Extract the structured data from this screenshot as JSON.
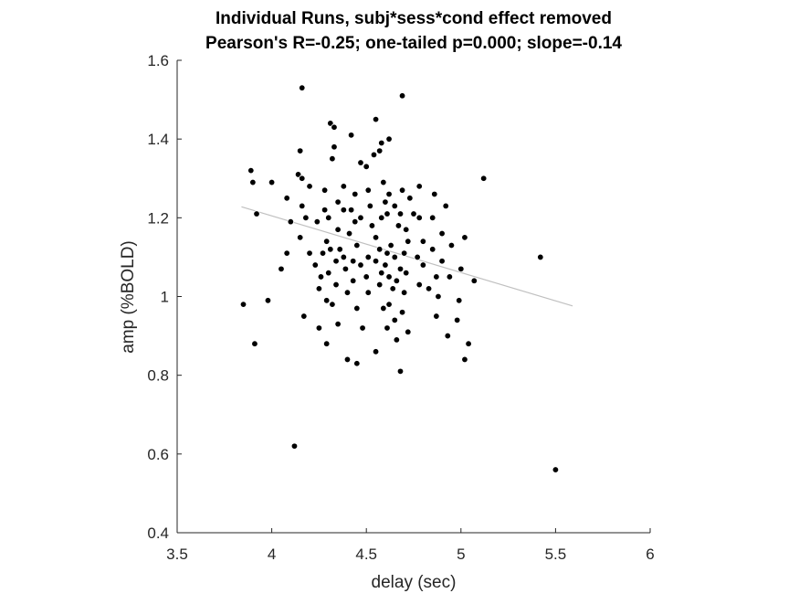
{
  "chart_data": {
    "type": "scatter",
    "title": "Individual Runs, subj*sess*cond effect removed",
    "subtitle": "Pearson's R=-0.25; one-tailed p=0.000; slope=-0.14",
    "xlabel": "delay (sec)",
    "ylabel": "amp (%BOLD)",
    "xlim": [
      3.5,
      6
    ],
    "ylim": [
      0.4,
      1.6
    ],
    "xticks": [
      "3.5",
      "4",
      "4.5",
      "5",
      "5.5",
      "6"
    ],
    "yticks": [
      "0.4",
      "0.6",
      "0.8",
      "1",
      "1.2",
      "1.4",
      "1.6"
    ],
    "grid": false,
    "points": [
      [
        4.16,
        1.53
      ],
      [
        4.69,
        1.51
      ],
      [
        4.55,
        1.45
      ],
      [
        4.31,
        1.44
      ],
      [
        4.33,
        1.43
      ],
      [
        4.42,
        1.41
      ],
      [
        4.58,
        1.39
      ],
      [
        4.62,
        1.4
      ],
      [
        4.33,
        1.38
      ],
      [
        4.15,
        1.37
      ],
      [
        4.57,
        1.37
      ],
      [
        4.54,
        1.36
      ],
      [
        4.32,
        1.35
      ],
      [
        4.47,
        1.34
      ],
      [
        4.5,
        1.33
      ],
      [
        3.89,
        1.32
      ],
      [
        4.14,
        1.31
      ],
      [
        4.16,
        1.3
      ],
      [
        5.12,
        1.3
      ],
      [
        3.9,
        1.29
      ],
      [
        4.0,
        1.29
      ],
      [
        4.59,
        1.29
      ],
      [
        4.38,
        1.28
      ],
      [
        4.2,
        1.28
      ],
      [
        4.78,
        1.28
      ],
      [
        4.28,
        1.27
      ],
      [
        4.69,
        1.27
      ],
      [
        4.51,
        1.27
      ],
      [
        4.62,
        1.26
      ],
      [
        4.86,
        1.26
      ],
      [
        4.44,
        1.26
      ],
      [
        4.08,
        1.25
      ],
      [
        4.73,
        1.25
      ],
      [
        4.35,
        1.24
      ],
      [
        4.6,
        1.24
      ],
      [
        4.65,
        1.23
      ],
      [
        4.16,
        1.23
      ],
      [
        4.92,
        1.23
      ],
      [
        4.52,
        1.23
      ],
      [
        4.42,
        1.22
      ],
      [
        4.28,
        1.22
      ],
      [
        4.38,
        1.22
      ],
      [
        4.75,
        1.21
      ],
      [
        3.92,
        1.21
      ],
      [
        4.61,
        1.21
      ],
      [
        4.68,
        1.21
      ],
      [
        4.18,
        1.2
      ],
      [
        4.3,
        1.2
      ],
      [
        4.47,
        1.2
      ],
      [
        4.58,
        1.2
      ],
      [
        4.78,
        1.2
      ],
      [
        4.85,
        1.2
      ],
      [
        4.44,
        1.19
      ],
      [
        4.24,
        1.19
      ],
      [
        4.1,
        1.19
      ],
      [
        4.53,
        1.18
      ],
      [
        4.67,
        1.18
      ],
      [
        4.71,
        1.17
      ],
      [
        4.35,
        1.17
      ],
      [
        4.9,
        1.16
      ],
      [
        4.41,
        1.16
      ],
      [
        4.15,
        1.15
      ],
      [
        4.55,
        1.15
      ],
      [
        4.72,
        1.14
      ],
      [
        5.02,
        1.15
      ],
      [
        4.8,
        1.14
      ],
      [
        4.29,
        1.14
      ],
      [
        4.63,
        1.13
      ],
      [
        4.45,
        1.13
      ],
      [
        4.95,
        1.13
      ],
      [
        4.31,
        1.12
      ],
      [
        4.57,
        1.12
      ],
      [
        4.85,
        1.12
      ],
      [
        4.36,
        1.12
      ],
      [
        4.7,
        1.11
      ],
      [
        4.61,
        1.11
      ],
      [
        4.2,
        1.11
      ],
      [
        4.08,
        1.11
      ],
      [
        4.27,
        1.11
      ],
      [
        4.51,
        1.1
      ],
      [
        4.38,
        1.1
      ],
      [
        4.77,
        1.1
      ],
      [
        5.42,
        1.1
      ],
      [
        4.65,
        1.1
      ],
      [
        4.43,
        1.09
      ],
      [
        4.9,
        1.09
      ],
      [
        4.34,
        1.09
      ],
      [
        4.55,
        1.09
      ],
      [
        4.23,
        1.08
      ],
      [
        4.6,
        1.08
      ],
      [
        4.8,
        1.08
      ],
      [
        4.47,
        1.08
      ],
      [
        4.68,
        1.07
      ],
      [
        4.39,
        1.07
      ],
      [
        4.05,
        1.07
      ],
      [
        5.0,
        1.07
      ],
      [
        4.58,
        1.06
      ],
      [
        4.3,
        1.06
      ],
      [
        4.71,
        1.06
      ],
      [
        4.87,
        1.05
      ],
      [
        4.62,
        1.05
      ],
      [
        4.5,
        1.05
      ],
      [
        4.26,
        1.05
      ],
      [
        4.66,
        1.04
      ],
      [
        4.43,
        1.04
      ],
      [
        4.94,
        1.05
      ],
      [
        5.07,
        1.04
      ],
      [
        4.57,
        1.03
      ],
      [
        4.34,
        1.03
      ],
      [
        4.78,
        1.03
      ],
      [
        4.64,
        1.02
      ],
      [
        4.25,
        1.02
      ],
      [
        4.83,
        1.02
      ],
      [
        4.51,
        1.01
      ],
      [
        4.7,
        1.01
      ],
      [
        4.4,
        1.01
      ],
      [
        4.88,
        1.0
      ],
      [
        4.29,
        0.99
      ],
      [
        3.98,
        0.99
      ],
      [
        4.99,
        0.99
      ],
      [
        3.85,
        0.98
      ],
      [
        4.62,
        0.98
      ],
      [
        4.32,
        0.98
      ],
      [
        4.45,
        0.97
      ],
      [
        4.59,
        0.97
      ],
      [
        4.69,
        0.96
      ],
      [
        4.17,
        0.95
      ],
      [
        4.87,
        0.95
      ],
      [
        4.65,
        0.94
      ],
      [
        4.98,
        0.94
      ],
      [
        4.35,
        0.93
      ],
      [
        4.25,
        0.92
      ],
      [
        4.48,
        0.92
      ],
      [
        4.61,
        0.92
      ],
      [
        4.72,
        0.91
      ],
      [
        4.93,
        0.9
      ],
      [
        4.66,
        0.89
      ],
      [
        4.29,
        0.88
      ],
      [
        3.91,
        0.88
      ],
      [
        5.04,
        0.88
      ],
      [
        4.55,
        0.86
      ],
      [
        5.02,
        0.84
      ],
      [
        4.4,
        0.84
      ],
      [
        4.45,
        0.83
      ],
      [
        4.68,
        0.81
      ],
      [
        4.12,
        0.62
      ],
      [
        5.5,
        0.56
      ]
    ],
    "fit_line": {
      "x": [
        3.84,
        5.59
      ],
      "y": [
        1.228,
        0.976
      ]
    },
    "colors": {
      "points": "#000000",
      "point_edge": "#ffffff",
      "fit_line": "#c0c0c0",
      "axis": "#262626"
    }
  }
}
